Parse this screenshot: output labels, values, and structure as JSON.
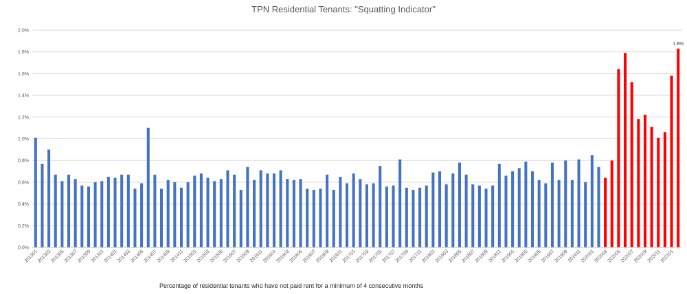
{
  "chart_data": {
    "type": "bar",
    "title": "TPN Residential Tenants: \"Squatting Indicator\"",
    "caption": "Percentage of residential tenants who have not paid rent for a minimum of 4 consecutive months",
    "xlabel": "",
    "ylabel": "",
    "ylim": [
      0,
      2.0
    ],
    "y_ticks": [
      "0.0%",
      "0.2%",
      "0.4%",
      "0.6%",
      "0.8%",
      "1.0%",
      "1.2%",
      "1.4%",
      "1.6%",
      "1.8%",
      "2.0%"
    ],
    "grid": true,
    "legend": "none",
    "colors": {
      "normal": "#4472C4",
      "highlight": "#FF0000",
      "grid": "#D9D9D9",
      "axis": "#BFBFBF",
      "text": "#595959"
    },
    "categories": [
      "201301",
      "201302",
      "201303",
      "201304",
      "201305",
      "201306",
      "201307",
      "201308",
      "201309",
      "201310",
      "201311",
      "201312",
      "201401",
      "201402",
      "201403",
      "201404",
      "201405",
      "201406",
      "201407",
      "201408",
      "201409",
      "201410",
      "201411",
      "201412",
      "201501",
      "201502",
      "201503",
      "201504",
      "201505",
      "201506",
      "201507",
      "201508",
      "201509",
      "201510",
      "201511",
      "201512",
      "201601",
      "201602",
      "201603",
      "201604",
      "201605",
      "201606",
      "201607",
      "201608",
      "201609",
      "201610",
      "201611",
      "201612",
      "201701",
      "201702",
      "201703",
      "201704",
      "201705",
      "201706",
      "201707",
      "201708",
      "201709",
      "201710",
      "201711",
      "201712",
      "201801",
      "201802",
      "201803",
      "201804",
      "201805",
      "201806",
      "201807",
      "201808",
      "201809",
      "201810",
      "201811",
      "201812",
      "201901",
      "201902",
      "201903",
      "201904",
      "201905",
      "201906",
      "201907",
      "201908",
      "201909",
      "201910",
      "201911",
      "201912",
      "202001",
      "202002",
      "202003",
      "202004",
      "202005",
      "202006",
      "202007",
      "202008",
      "202009",
      "202010",
      "202011",
      "202012",
      "202101",
      "202102"
    ],
    "tick_labels": [
      "201301",
      "201303",
      "201305",
      "201307",
      "201309",
      "201311",
      "201401",
      "201403",
      "201405",
      "201407",
      "201409",
      "201411",
      "201501",
      "201503",
      "201505",
      "201507",
      "201509",
      "201511",
      "201601",
      "201603",
      "201605",
      "201607",
      "201609",
      "201611",
      "201701",
      "201703",
      "201705",
      "201707",
      "201709",
      "201711",
      "201801",
      "201803",
      "201805",
      "201807",
      "201809",
      "201811",
      "201901",
      "201903",
      "201905",
      "201907",
      "201909",
      "201911",
      "202001",
      "202003",
      "202005",
      "202007",
      "202009",
      "202011",
      "202101"
    ],
    "values": [
      1.01,
      0.77,
      0.9,
      0.67,
      0.61,
      0.67,
      0.63,
      0.57,
      0.56,
      0.6,
      0.61,
      0.65,
      0.64,
      0.67,
      0.67,
      0.54,
      0.59,
      1.1,
      0.67,
      0.54,
      0.62,
      0.6,
      0.55,
      0.6,
      0.66,
      0.68,
      0.64,
      0.61,
      0.63,
      0.71,
      0.67,
      0.53,
      0.74,
      0.62,
      0.71,
      0.68,
      0.68,
      0.71,
      0.63,
      0.62,
      0.63,
      0.54,
      0.53,
      0.54,
      0.67,
      0.53,
      0.65,
      0.59,
      0.68,
      0.63,
      0.58,
      0.59,
      0.75,
      0.56,
      0.57,
      0.81,
      0.55,
      0.53,
      0.55,
      0.57,
      0.69,
      0.7,
      0.58,
      0.68,
      0.78,
      0.67,
      0.58,
      0.57,
      0.54,
      0.57,
      0.77,
      0.66,
      0.7,
      0.73,
      0.79,
      0.7,
      0.62,
      0.59,
      0.78,
      0.62,
      0.8,
      0.62,
      0.81,
      0.6,
      0.85,
      0.74,
      0.64,
      0.8,
      1.64,
      1.79,
      1.52,
      1.18,
      1.22,
      1.11,
      1.01,
      1.06,
      1.58,
      1.83
    ],
    "highlight_from": "202003",
    "data_labels": [
      {
        "category": "202102",
        "text": "1.8%"
      }
    ]
  }
}
